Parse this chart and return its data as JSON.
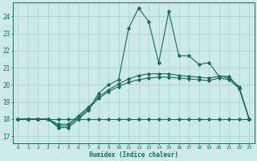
{
  "xlabel": "Humidex (Indice chaleur)",
  "bg_color": "#cceae7",
  "line_color": "#1a6b5a",
  "grid_color": "#aad4cf",
  "xlim": [
    -0.5,
    23.5
  ],
  "ylim": [
    16.6,
    24.8
  ],
  "xticks": [
    0,
    1,
    2,
    3,
    4,
    5,
    6,
    7,
    8,
    9,
    10,
    11,
    12,
    13,
    14,
    15,
    16,
    17,
    18,
    19,
    20,
    21,
    22,
    23
  ],
  "yticks": [
    17,
    18,
    19,
    20,
    21,
    22,
    23,
    24
  ],
  "line1_x": [
    0,
    1,
    2,
    3,
    4,
    5,
    6,
    7,
    8,
    9,
    10,
    11,
    12,
    13,
    14,
    15,
    16,
    17,
    18,
    19,
    20,
    21,
    22,
    23
  ],
  "line1_y": [
    18,
    18,
    18,
    18,
    17.5,
    17.5,
    18.0,
    18.5,
    19.5,
    20.0,
    20.3,
    23.3,
    24.5,
    23.7,
    21.3,
    24.3,
    21.7,
    21.7,
    21.2,
    21.3,
    20.5,
    20.5,
    19.8,
    18.0
  ],
  "line2_x": [
    0,
    1,
    2,
    3,
    4,
    5,
    6,
    7,
    8,
    9,
    10,
    11,
    12,
    13,
    14,
    15,
    16,
    17,
    18,
    19,
    20,
    21,
    22,
    23
  ],
  "line2_y": [
    18,
    18,
    18,
    18,
    18,
    18,
    18,
    18,
    18,
    18,
    18,
    18,
    18,
    18,
    18,
    18,
    18,
    18,
    18,
    18,
    18,
    18,
    18,
    18
  ],
  "line3_x": [
    0,
    1,
    2,
    3,
    4,
    5,
    6,
    7,
    8,
    9,
    10,
    11,
    12,
    13,
    14,
    15,
    16,
    17,
    18,
    19,
    20,
    21,
    22,
    23
  ],
  "line3_y": [
    18,
    18,
    18,
    18,
    17.6,
    17.6,
    18.1,
    18.6,
    19.2,
    19.6,
    19.9,
    20.15,
    20.3,
    20.4,
    20.45,
    20.45,
    20.4,
    20.35,
    20.3,
    20.25,
    20.4,
    20.3,
    19.8,
    18.0
  ],
  "line4_x": [
    0,
    1,
    2,
    3,
    4,
    5,
    6,
    7,
    8,
    9,
    10,
    11,
    12,
    13,
    14,
    15,
    16,
    17,
    18,
    19,
    20,
    21,
    22,
    23
  ],
  "line4_y": [
    18,
    18,
    18,
    18,
    17.7,
    17.7,
    18.2,
    18.7,
    19.3,
    19.7,
    20.05,
    20.35,
    20.55,
    20.65,
    20.65,
    20.65,
    20.55,
    20.5,
    20.45,
    20.4,
    20.5,
    20.4,
    19.9,
    18.0
  ],
  "figsize": [
    3.2,
    2.0
  ],
  "dpi": 100
}
